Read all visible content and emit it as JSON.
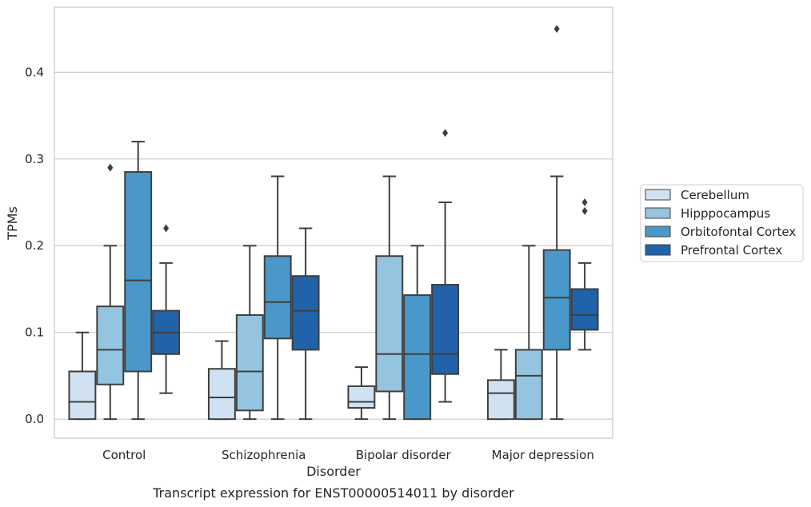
{
  "chart_data": {
    "type": "boxplot",
    "xlabel": "Disorder",
    "ylabel": "TPMs",
    "caption": "Transcript expression for ENST00000514011 by disorder",
    "ylim": [
      -0.022,
      0.475
    ],
    "yticks": [
      "0.0",
      "0.1",
      "0.2",
      "0.3",
      "0.4"
    ],
    "grid": "horizontal",
    "legend_position": "right",
    "categories": [
      "Control",
      "Schizophrenia",
      "Bipolar disorder",
      "Major depression"
    ],
    "series": [
      {
        "name": "Cerebellum",
        "color": "#d0e1f2",
        "boxes": [
          {
            "whisker_low": 0.0,
            "q1": 0.0,
            "median": 0.02,
            "q3": 0.055,
            "whisker_high": 0.1,
            "outliers": []
          },
          {
            "whisker_low": 0.0,
            "q1": 0.0,
            "median": 0.025,
            "q3": 0.058,
            "whisker_high": 0.09,
            "outliers": []
          },
          {
            "whisker_low": 0.0,
            "q1": 0.013,
            "median": 0.02,
            "q3": 0.038,
            "whisker_high": 0.06,
            "outliers": []
          },
          {
            "whisker_low": 0.0,
            "q1": 0.0,
            "median": 0.03,
            "q3": 0.045,
            "whisker_high": 0.08,
            "outliers": []
          }
        ]
      },
      {
        "name": "Hipppocampus",
        "color": "#94c4df",
        "boxes": [
          {
            "whisker_low": 0.0,
            "q1": 0.04,
            "median": 0.08,
            "q3": 0.13,
            "whisker_high": 0.2,
            "outliers": [
              0.29
            ]
          },
          {
            "whisker_low": 0.0,
            "q1": 0.01,
            "median": 0.055,
            "q3": 0.12,
            "whisker_high": 0.2,
            "outliers": []
          },
          {
            "whisker_low": 0.0,
            "q1": 0.032,
            "median": 0.075,
            "q3": 0.188,
            "whisker_high": 0.28,
            "outliers": []
          },
          {
            "whisker_low": 0.0,
            "q1": 0.0,
            "median": 0.05,
            "q3": 0.08,
            "whisker_high": 0.2,
            "outliers": []
          }
        ]
      },
      {
        "name": "Orbitofontal Cortex",
        "color": "#4a98c9",
        "boxes": [
          {
            "whisker_low": 0.0,
            "q1": 0.055,
            "median": 0.16,
            "q3": 0.285,
            "whisker_high": 0.32,
            "outliers": []
          },
          {
            "whisker_low": 0.0,
            "q1": 0.093,
            "median": 0.135,
            "q3": 0.188,
            "whisker_high": 0.28,
            "outliers": []
          },
          {
            "whisker_low": 0.0,
            "q1": 0.0,
            "median": 0.075,
            "q3": 0.143,
            "whisker_high": 0.2,
            "outliers": []
          },
          {
            "whisker_low": 0.0,
            "q1": 0.08,
            "median": 0.14,
            "q3": 0.195,
            "whisker_high": 0.28,
            "outliers": [
              0.45
            ]
          }
        ]
      },
      {
        "name": "Prefrontal Cortex",
        "color": "#2163aa",
        "boxes": [
          {
            "whisker_low": 0.03,
            "q1": 0.075,
            "median": 0.1,
            "q3": 0.125,
            "whisker_high": 0.18,
            "outliers": [
              0.22
            ]
          },
          {
            "whisker_low": 0.0,
            "q1": 0.08,
            "median": 0.125,
            "q3": 0.165,
            "whisker_high": 0.22,
            "outliers": []
          },
          {
            "whisker_low": 0.02,
            "q1": 0.052,
            "median": 0.075,
            "q3": 0.155,
            "whisker_high": 0.25,
            "outliers": [
              0.33
            ]
          },
          {
            "whisker_low": 0.08,
            "q1": 0.103,
            "median": 0.12,
            "q3": 0.15,
            "whisker_high": 0.18,
            "outliers": [
              0.24,
              0.25
            ]
          }
        ]
      }
    ]
  }
}
